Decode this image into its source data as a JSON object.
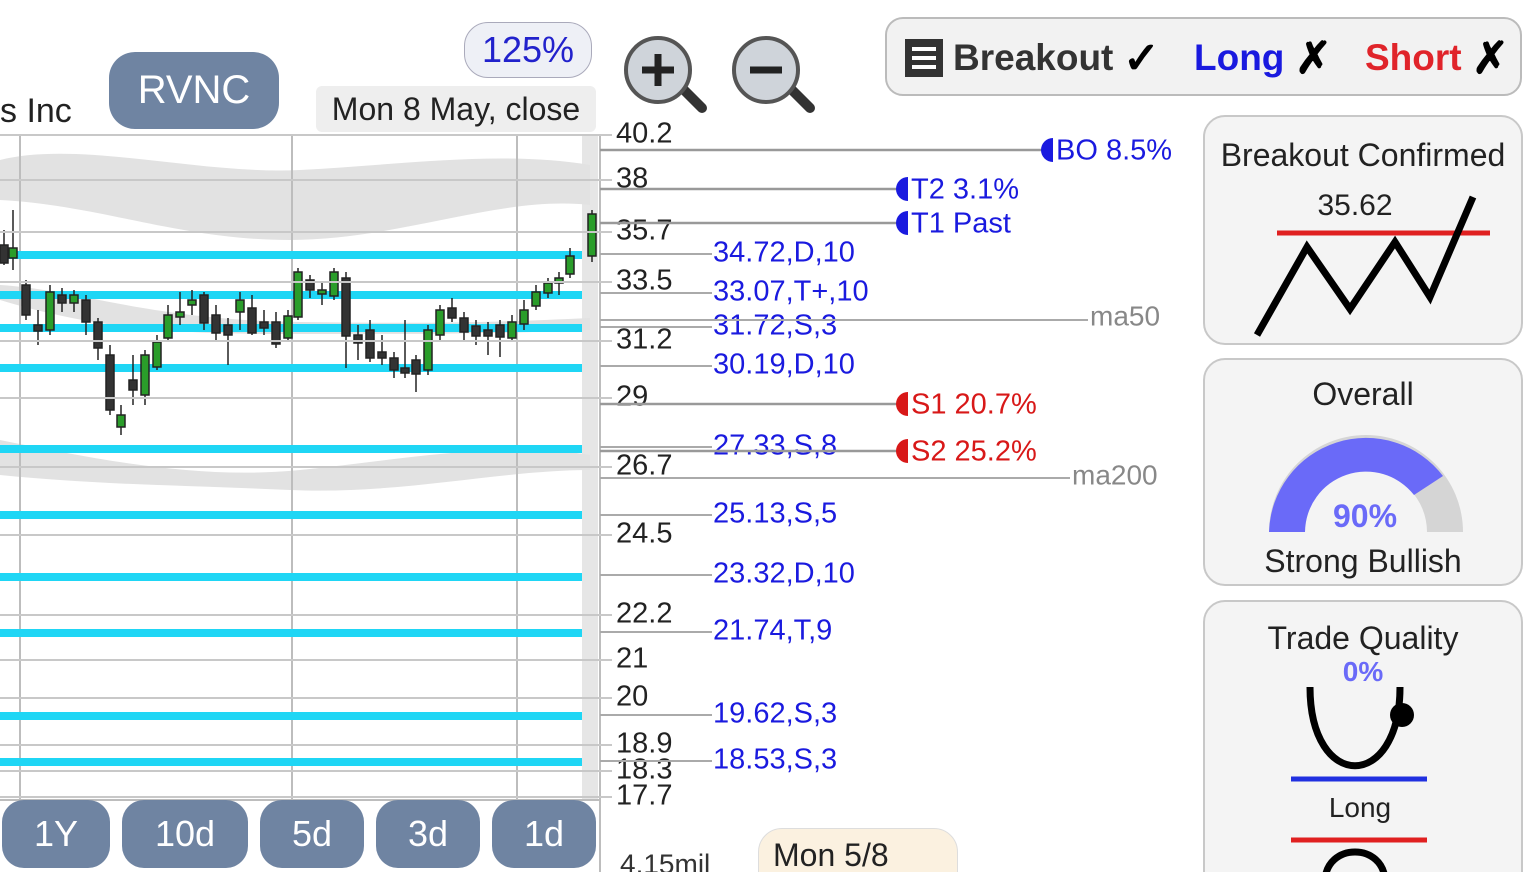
{
  "header": {
    "company_fragment": "s Inc",
    "ticker": "RVNC",
    "zoom": "125%",
    "date": "Mon 8 May, close"
  },
  "signals": {
    "breakout": "Breakout",
    "breakout_state": "✓",
    "long": "Long",
    "long_state": "✗",
    "short": "Short",
    "short_state": "✗"
  },
  "price_axis": [
    "40.2",
    "38",
    "35.7",
    "33.5",
    "31.2",
    "29",
    "26.7",
    "24.5",
    "22.2",
    "21",
    "20",
    "18.9",
    "18.3",
    "17.7"
  ],
  "levels": [
    "34.72,D,10",
    "33.07,T+,10",
    "31.72,S,3",
    "30.19,D,10",
    "27.33,S,8",
    "25.13,S,5",
    "23.32,D,10",
    "21.74,T,9",
    "19.62,S,3",
    "18.53,S,3"
  ],
  "targets": [
    "BO 8.5%",
    "T2 3.1%",
    "T1 Past",
    "S1 20.7%",
    "S2 25.2%"
  ],
  "moving_averages": [
    "ma50",
    "ma200"
  ],
  "periods": [
    "1Y",
    "10d",
    "5d",
    "3d",
    "1d"
  ],
  "volume_label": "4.15mil",
  "date_tag": "Mon 5/8",
  "panels": {
    "breakout": {
      "title": "Breakout Confirmed",
      "value": "35.62"
    },
    "overall": {
      "title": "Overall",
      "value": "90%",
      "label": "Strong Bullish"
    },
    "trade_quality": {
      "title": "Trade Quality",
      "value": "0%",
      "label": "Long"
    }
  }
}
